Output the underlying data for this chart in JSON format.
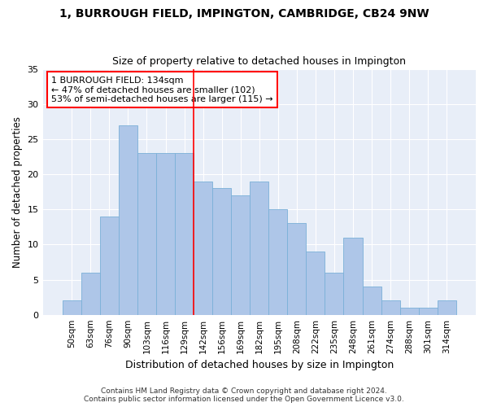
{
  "title": "1, BURROUGH FIELD, IMPINGTON, CAMBRIDGE, CB24 9NW",
  "subtitle": "Size of property relative to detached houses in Impington",
  "xlabel": "Distribution of detached houses by size in Impington",
  "ylabel": "Number of detached properties",
  "bar_color": "#aec6e8",
  "bar_edge_color": "#7ab0d8",
  "background_color": "#e8eef8",
  "grid_color": "#ffffff",
  "categories": [
    "50sqm",
    "63sqm",
    "76sqm",
    "90sqm",
    "103sqm",
    "116sqm",
    "129sqm",
    "142sqm",
    "156sqm",
    "169sqm",
    "182sqm",
    "195sqm",
    "208sqm",
    "222sqm",
    "235sqm",
    "248sqm",
    "261sqm",
    "274sqm",
    "288sqm",
    "301sqm",
    "314sqm"
  ],
  "values": [
    2,
    6,
    14,
    27,
    23,
    23,
    23,
    19,
    18,
    17,
    19,
    15,
    13,
    9,
    6,
    11,
    4,
    2,
    1,
    1,
    2
  ],
  "red_line_x": 6.5,
  "annotation_text": "1 BURROUGH FIELD: 134sqm\n← 47% of detached houses are smaller (102)\n53% of semi-detached houses are larger (115) →",
  "ylim": [
    0,
    35
  ],
  "yticks": [
    0,
    5,
    10,
    15,
    20,
    25,
    30,
    35
  ],
  "footer": "Contains HM Land Registry data © Crown copyright and database right 2024.\nContains public sector information licensed under the Open Government Licence v3.0.",
  "fig_width": 6.0,
  "fig_height": 5.0,
  "dpi": 100
}
